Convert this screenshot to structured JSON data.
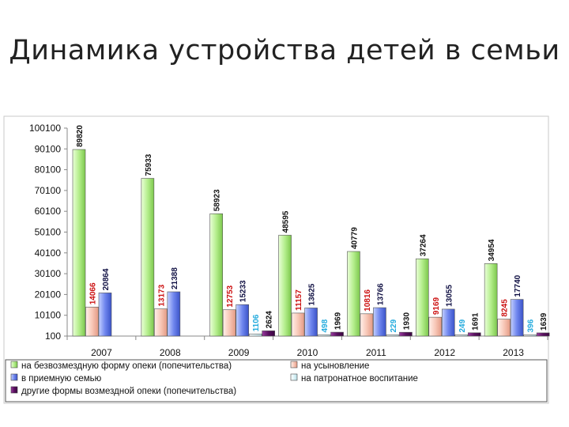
{
  "page": {
    "title": "Динамика устройства детей в семьи"
  },
  "chart_data": {
    "type": "bar",
    "categories": [
      "2007",
      "2008",
      "2009",
      "2010",
      "2011",
      "2012",
      "2013"
    ],
    "ylim": [
      100,
      100100
    ],
    "yticks": [
      100,
      10100,
      20100,
      30100,
      40100,
      50100,
      60100,
      70100,
      80100,
      90100,
      100100
    ],
    "grid": false,
    "legend_position": "bottom",
    "series": [
      {
        "name": "на безвозмездную форму опеки (попечительства)",
        "values": [
          89820,
          75933,
          58923,
          48595,
          40779,
          37264,
          34954
        ],
        "labels": [
          "89820",
          "75933",
          "58923",
          "48595",
          "40779",
          "37264",
          "34954"
        ],
        "color": "#b4ee8c",
        "label_color": "#111111"
      },
      {
        "name": "на усыновление",
        "values": [
          14066,
          13173,
          12753,
          11157,
          10816,
          9169,
          8245
        ],
        "labels": [
          "14066",
          "13173",
          "12753",
          "11157",
          "10816",
          "9169",
          "8245"
        ],
        "color": "#f8c8b8",
        "label_color": "#cc1111"
      },
      {
        "name": "в приемную семью",
        "values": [
          20864,
          21388,
          15233,
          13625,
          13766,
          13055,
          17740
        ],
        "labels": [
          "20864",
          "21388",
          "15233",
          "13625",
          "13766",
          "13055",
          "17740"
        ],
        "color": "#6f86ee",
        "label_color": "#111144"
      },
      {
        "name": "на патронатное воспитание",
        "values": [
          null,
          null,
          1106,
          498,
          229,
          249,
          396
        ],
        "labels": [
          "",
          "",
          "1106",
          "498",
          "229",
          "249",
          "396"
        ],
        "color": "#dff4f8",
        "label_color": "#22aadd"
      },
      {
        "name": "другие формы возмездной опеки (попечительства)",
        "values": [
          null,
          null,
          2624,
          1969,
          1930,
          1691,
          1639
        ],
        "labels": [
          "",
          "",
          "2624",
          "1969",
          "1930",
          "1691",
          "1639"
        ],
        "color": "#5a1060",
        "label_color": "#111111"
      }
    ]
  }
}
